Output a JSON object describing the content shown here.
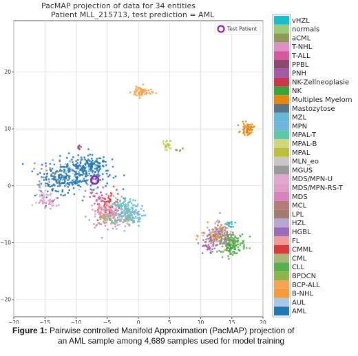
{
  "chart_data": {
    "type": "scatter",
    "title": "PacMAP projection of data for 34 entities",
    "subtitle": "Patient MLL_215713, test prediction = AML",
    "xlabel": "",
    "ylabel": "",
    "xlim": [
      -20,
      20
    ],
    "ylim": [
      -23,
      29
    ],
    "x_ticks": [
      -20,
      -15,
      -10,
      -5,
      0,
      5,
      10,
      15,
      20
    ],
    "y_ticks": [
      -20,
      -10,
      0,
      10,
      20
    ],
    "x_tick_labels": [
      "−20",
      "−15",
      "−10",
      "−5",
      "0",
      "5",
      "10",
      "15",
      "20"
    ],
    "y_tick_labels": [
      "−20",
      "−10",
      "0",
      "10",
      "20"
    ],
    "grid": true,
    "legend_placement": "right, outside",
    "test_patient": {
      "label": "Test Patient",
      "x": -7,
      "y": 1,
      "color": "#a21cb0",
      "legend_placement": "top-right"
    },
    "series": [
      {
        "name": "vHZL",
        "color": "#17becf"
      },
      {
        "name": "normals",
        "color": "#9cc97a"
      },
      {
        "name": "aCML",
        "color": "#8c9a5a"
      },
      {
        "name": "T-NHL",
        "color": "#de8fc5"
      },
      {
        "name": "T-ALL",
        "color": "#d45a9e"
      },
      {
        "name": "PPBL",
        "color": "#8c4a6e"
      },
      {
        "name": "PNH",
        "color": "#a05aa8"
      },
      {
        "name": "NK-Zellneoplasie",
        "color": "#c9374a"
      },
      {
        "name": "NK",
        "color": "#3aa33a"
      },
      {
        "name": "Multiples Myelom",
        "color": "#e6860f"
      },
      {
        "name": "Mastozytose",
        "color": "#577788"
      },
      {
        "name": "MZL",
        "color": "#67b8d6"
      },
      {
        "name": "MPN",
        "color": "#6eb6dd"
      },
      {
        "name": "MPAL-T",
        "color": "#5cc8a8"
      },
      {
        "name": "MPAL-B",
        "color": "#cfd77a"
      },
      {
        "name": "MPAL",
        "color": "#bcbf3a"
      },
      {
        "name": "MLN_eo",
        "color": "#c7c7c7"
      },
      {
        "name": "MGUS",
        "color": "#9a9a9a"
      },
      {
        "name": "MDS/MPN-U",
        "color": "#e3a6cf"
      },
      {
        "name": "MDS/MPN-RS-T",
        "color": "#dca0c4"
      },
      {
        "name": "MDS",
        "color": "#d983be"
      },
      {
        "name": "MCL",
        "color": "#b47c78"
      },
      {
        "name": "LPL",
        "color": "#a67a6f"
      },
      {
        "name": "HZL",
        "color": "#b8a6d4"
      },
      {
        "name": "HGBL",
        "color": "#9a6bb8"
      },
      {
        "name": "FL",
        "color": "#f29a98"
      },
      {
        "name": "CMML",
        "color": "#d93c3c"
      },
      {
        "name": "CML",
        "color": "#a8b87a"
      },
      {
        "name": "CLL",
        "color": "#56b04c"
      },
      {
        "name": "BPDCN",
        "color": "#8fb44e"
      },
      {
        "name": "BCP-ALL",
        "color": "#f5a552"
      },
      {
        "name": "B-NHL",
        "color": "#f39b3a"
      },
      {
        "name": "AUL",
        "color": "#a9c8e6"
      },
      {
        "name": "AML",
        "color": "#1f77b4"
      }
    ],
    "clusters": [
      {
        "series": "AML",
        "cx": -9.5,
        "cy": 2.2,
        "sx": 2.6,
        "sy": 1.4,
        "n": 260
      },
      {
        "series": "AML",
        "cx": -13,
        "cy": 0.5,
        "sx": 1.8,
        "sy": 1.2,
        "n": 90
      },
      {
        "series": "AML",
        "cx": -7.5,
        "cy": 3.8,
        "sx": 1.2,
        "sy": 0.8,
        "n": 60
      },
      {
        "series": "AUL",
        "cx": -10,
        "cy": 1.5,
        "sx": 2.2,
        "sy": 1.3,
        "n": 30
      },
      {
        "series": "CMML",
        "cx": -4.5,
        "cy": -3,
        "sx": 0.9,
        "sy": 1.2,
        "n": 60
      },
      {
        "series": "MDS",
        "cx": -5,
        "cy": -5.5,
        "sx": 1.5,
        "sy": 0.9,
        "n": 80
      },
      {
        "series": "MDS/MPN-RS-T",
        "cx": -4,
        "cy": -5,
        "sx": 1.4,
        "sy": 1.0,
        "n": 40
      },
      {
        "series": "MPN",
        "cx": -2,
        "cy": -4.5,
        "sx": 1.2,
        "sy": 1.2,
        "n": 110
      },
      {
        "series": "MZL",
        "cx": -1,
        "cy": -5.5,
        "sx": 0.9,
        "sy": 0.8,
        "n": 40
      },
      {
        "series": "MPAL-T",
        "cx": -2.5,
        "cy": -3.5,
        "sx": 0.9,
        "sy": 0.9,
        "n": 40
      },
      {
        "series": "CML",
        "cx": -3,
        "cy": -6,
        "sx": 1.1,
        "sy": 0.7,
        "n": 30
      },
      {
        "series": "T-ALL",
        "cx": -6.5,
        "cy": -2,
        "sx": 1.0,
        "sy": 0.8,
        "n": 30
      },
      {
        "series": "FL",
        "cx": -5.8,
        "cy": -4.5,
        "sx": 0.8,
        "sy": 0.7,
        "n": 20
      },
      {
        "series": "MDS/MPN-U",
        "cx": -15,
        "cy": -2,
        "sx": 0.9,
        "sy": 1.1,
        "n": 30
      },
      {
        "series": "T-NHL",
        "cx": -14.5,
        "cy": -3,
        "sx": 0.8,
        "sy": 0.4,
        "n": 20
      },
      {
        "series": "MCL",
        "cx": -14,
        "cy": 2.5,
        "sx": 1.4,
        "sy": 1.2,
        "n": 20
      },
      {
        "series": "CLL",
        "cx": 15,
        "cy": -10,
        "sx": 1.1,
        "sy": 0.9,
        "n": 140
      },
      {
        "series": "HZL",
        "cx": 13,
        "cy": -8.5,
        "sx": 1.1,
        "sy": 1.0,
        "n": 50
      },
      {
        "series": "HGBL",
        "cx": 12,
        "cy": -9,
        "sx": 1.2,
        "sy": 0.9,
        "n": 40
      },
      {
        "series": "LPL",
        "cx": 13,
        "cy": -9.5,
        "sx": 0.9,
        "sy": 0.8,
        "n": 40
      },
      {
        "series": "MCL",
        "cx": 13.5,
        "cy": -7.5,
        "sx": 1.0,
        "sy": 1.0,
        "n": 30
      },
      {
        "series": "B-NHL",
        "cx": 12.5,
        "cy": -8.8,
        "sx": 1.2,
        "sy": 1.0,
        "n": 30
      },
      {
        "series": "PNH",
        "cx": 11,
        "cy": -11,
        "sx": 0.6,
        "sy": 0.6,
        "n": 20
      },
      {
        "series": "BCP-ALL",
        "cx": 0.5,
        "cy": 16.5,
        "sx": 0.8,
        "sy": 0.5,
        "n": 60
      },
      {
        "series": "Multiples Myelom",
        "cx": 17.5,
        "cy": 10,
        "sx": 0.5,
        "sy": 0.5,
        "n": 55
      },
      {
        "series": "MPAL-B",
        "cx": 4.5,
        "cy": 7,
        "sx": 0.3,
        "sy": 0.5,
        "n": 12
      },
      {
        "series": "MPAL",
        "cx": 4.6,
        "cy": 7.3,
        "sx": 0.3,
        "sy": 0.4,
        "n": 10
      },
      {
        "series": "aCML",
        "cx": 6.5,
        "cy": 6.3,
        "sx": 0.3,
        "sy": 0.2,
        "n": 6
      },
      {
        "series": "PPBL",
        "cx": -9.5,
        "cy": 7,
        "sx": 0.2,
        "sy": 0.4,
        "n": 8
      },
      {
        "series": "NK",
        "cx": 14.8,
        "cy": -11,
        "sx": 0.6,
        "sy": 0.4,
        "n": 20
      },
      {
        "series": "vHZL",
        "cx": 14.5,
        "cy": -7,
        "sx": 0.5,
        "sy": 0.5,
        "n": 10
      },
      {
        "series": "BPDCN",
        "cx": -6,
        "cy": -6,
        "sx": 0.8,
        "sy": 0.5,
        "n": 15
      }
    ]
  },
  "caption": {
    "label": "Figure 1:",
    "line1": "Pairwise controlled Manifold Approximation (PacMAP) projection of",
    "line2": "an AML sample among 4,689 samples used for model training"
  }
}
